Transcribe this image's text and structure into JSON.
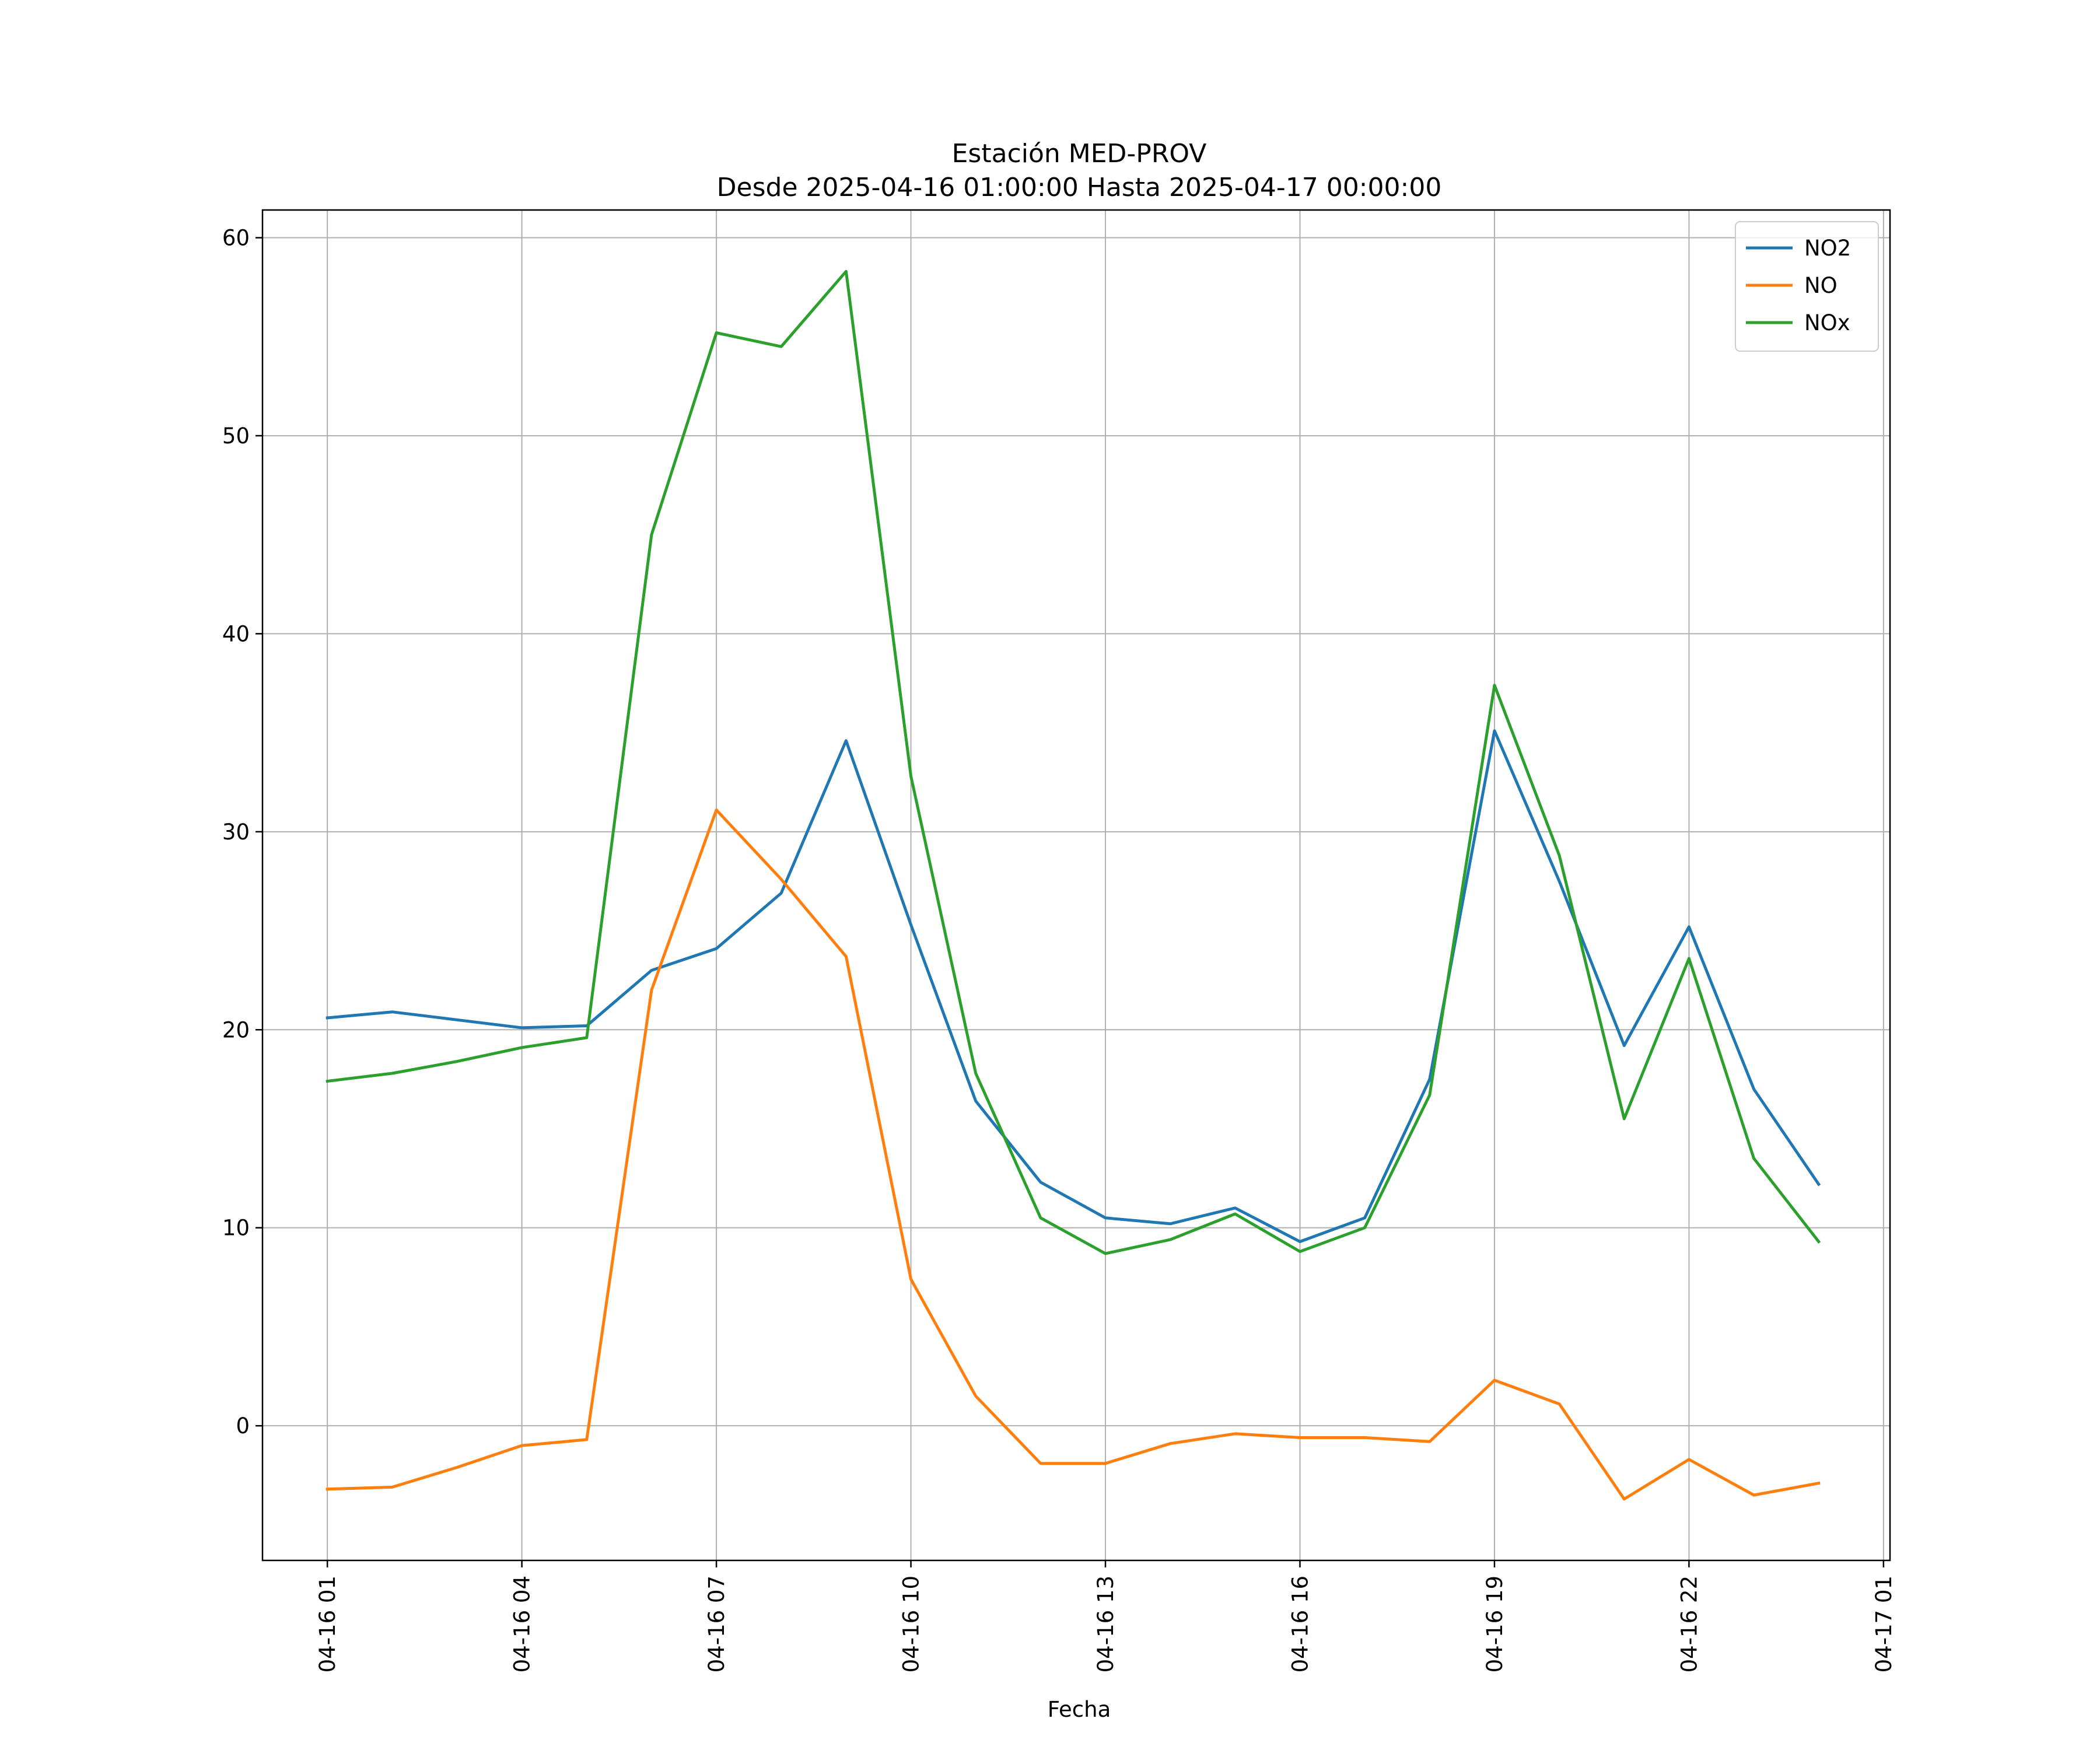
{
  "chart_data": {
    "type": "line",
    "title": "Estación MED-PROV",
    "subtitle": "Desde 2025-04-16 01:00:00 Hasta 2025-04-17 00:00:00",
    "xlabel": "Fecha",
    "ylabel": "",
    "x": [
      "2025-04-16 01:00",
      "2025-04-16 02:00",
      "2025-04-16 03:00",
      "2025-04-16 04:00",
      "2025-04-16 05:00",
      "2025-04-16 06:00",
      "2025-04-16 07:00",
      "2025-04-16 08:00",
      "2025-04-16 09:00",
      "2025-04-16 10:00",
      "2025-04-16 11:00",
      "2025-04-16 12:00",
      "2025-04-16 13:00",
      "2025-04-16 14:00",
      "2025-04-16 15:00",
      "2025-04-16 16:00",
      "2025-04-16 17:00",
      "2025-04-16 18:00",
      "2025-04-16 19:00",
      "2025-04-16 20:00",
      "2025-04-16 21:00",
      "2025-04-16 22:00",
      "2025-04-16 23:00",
      "2025-04-17 00:00"
    ],
    "xlim": [
      "2025-04-16 00:00",
      "2025-04-17 01:06"
    ],
    "x_ticks": [
      "2025-04-16 01:00",
      "2025-04-16 04:00",
      "2025-04-16 07:00",
      "2025-04-16 10:00",
      "2025-04-16 13:00",
      "2025-04-16 16:00",
      "2025-04-16 19:00",
      "2025-04-16 22:00",
      "2025-04-17 01:00"
    ],
    "x_tick_labels": [
      "04-16 01",
      "04-16 04",
      "04-16 07",
      "04-16 10",
      "04-16 13",
      "04-16 16",
      "04-16 19",
      "04-16 22",
      "04-17 01"
    ],
    "ylim": [
      -6.8,
      61.4
    ],
    "y_ticks": [
      0,
      10,
      20,
      30,
      40,
      50,
      60
    ],
    "y_tick_labels": [
      "0",
      "10",
      "20",
      "30",
      "40",
      "50",
      "60"
    ],
    "grid": true,
    "legend_position": "top-right",
    "series": [
      {
        "name": "NO2",
        "color": "#1f77b4",
        "values": [
          20.6,
          20.9,
          20.5,
          20.1,
          20.2,
          23.0,
          24.1,
          26.9,
          34.6,
          25.3,
          16.4,
          12.3,
          10.5,
          10.2,
          11.0,
          9.3,
          10.5,
          17.5,
          35.1,
          27.5,
          19.2,
          25.2,
          17.0,
          12.2
        ]
      },
      {
        "name": "NO",
        "color": "#ff7f0e",
        "values": [
          -3.2,
          -3.1,
          -2.1,
          -1.0,
          -0.7,
          22.0,
          31.1,
          27.6,
          23.7,
          7.4,
          1.5,
          -1.9,
          -1.9,
          -0.9,
          -0.4,
          -0.6,
          -0.6,
          -0.8,
          2.3,
          1.1,
          -3.7,
          -1.7,
          -3.5,
          -2.9
        ]
      },
      {
        "name": "NOx",
        "color": "#2ca02c",
        "values": [
          17.4,
          17.8,
          18.4,
          19.1,
          19.6,
          45.0,
          55.2,
          54.5,
          58.3,
          32.8,
          17.8,
          10.5,
          8.7,
          9.4,
          10.7,
          8.8,
          10.0,
          16.7,
          37.4,
          28.8,
          15.5,
          23.6,
          13.5,
          9.3
        ]
      }
    ]
  }
}
